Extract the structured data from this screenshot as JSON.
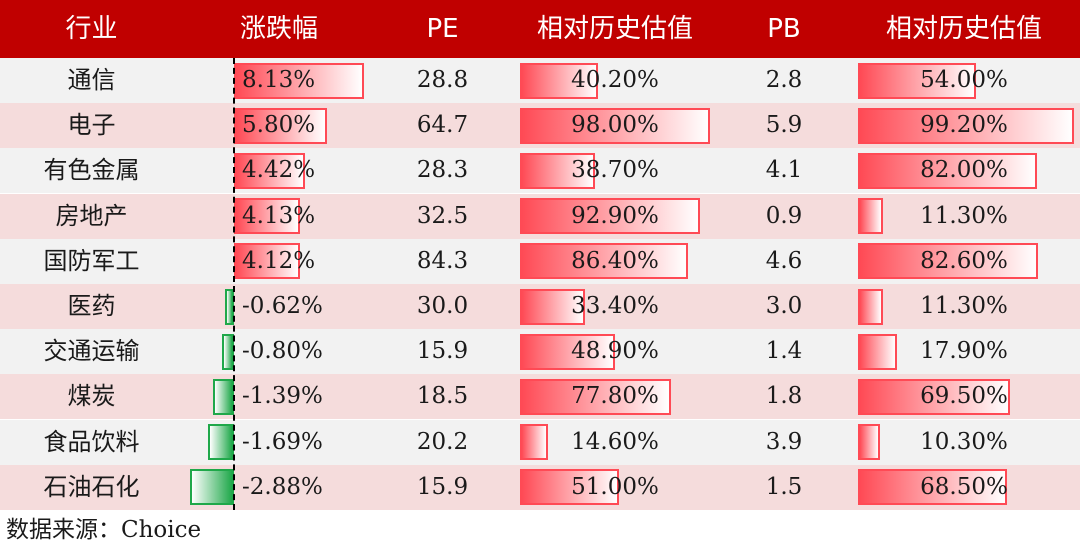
{
  "header": {
    "industry": "行业",
    "change": "涨跌幅",
    "pe": "PE",
    "pe_hist": "相对历史估值",
    "pb": "PB",
    "pb_hist": "相对历史估值"
  },
  "colors": {
    "header_bg": "#c00000",
    "row_light": "#f2f2f2",
    "row_dark": "#f5dcdc",
    "positive_bar": "#ff4a55",
    "negative_bar": "#1fa84a"
  },
  "chart_data": {
    "type": "table",
    "columns": [
      "行业",
      "涨跌幅",
      "PE",
      "相对历史估值",
      "PB",
      "相对历史估值"
    ],
    "rows": [
      {
        "industry": "通信",
        "change": 8.13,
        "change_label": "8.13%",
        "pe": "28.8",
        "pe_pct": 40.2,
        "pe_pct_label": "40.20%",
        "pb": "2.8",
        "pb_pct": 54.0,
        "pb_pct_label": "54.00%"
      },
      {
        "industry": "电子",
        "change": 5.8,
        "change_label": "5.80%",
        "pe": "64.7",
        "pe_pct": 98.0,
        "pe_pct_label": "98.00%",
        "pb": "5.9",
        "pb_pct": 99.2,
        "pb_pct_label": "99.20%"
      },
      {
        "industry": "有色金属",
        "change": 4.42,
        "change_label": "4.42%",
        "pe": "28.3",
        "pe_pct": 38.7,
        "pe_pct_label": "38.70%",
        "pb": "4.1",
        "pb_pct": 82.0,
        "pb_pct_label": "82.00%"
      },
      {
        "industry": "房地产",
        "change": 4.13,
        "change_label": "4.13%",
        "pe": "32.5",
        "pe_pct": 92.9,
        "pe_pct_label": "92.90%",
        "pb": "0.9",
        "pb_pct": 11.3,
        "pb_pct_label": "11.30%"
      },
      {
        "industry": "国防军工",
        "change": 4.12,
        "change_label": "4.12%",
        "pe": "84.3",
        "pe_pct": 86.4,
        "pe_pct_label": "86.40%",
        "pb": "4.6",
        "pb_pct": 82.6,
        "pb_pct_label": "82.60%"
      },
      {
        "industry": "医药",
        "change": -0.62,
        "change_label": "-0.62%",
        "pe": "30.0",
        "pe_pct": 33.4,
        "pe_pct_label": "33.40%",
        "pb": "3.0",
        "pb_pct": 11.3,
        "pb_pct_label": "11.30%"
      },
      {
        "industry": "交通运输",
        "change": -0.8,
        "change_label": "-0.80%",
        "pe": "15.9",
        "pe_pct": 48.9,
        "pe_pct_label": "48.90%",
        "pb": "1.4",
        "pb_pct": 17.9,
        "pb_pct_label": "17.90%"
      },
      {
        "industry": "煤炭",
        "change": -1.39,
        "change_label": "-1.39%",
        "pe": "18.5",
        "pe_pct": 77.8,
        "pe_pct_label": "77.80%",
        "pb": "1.8",
        "pb_pct": 69.5,
        "pb_pct_label": "69.50%"
      },
      {
        "industry": "食品饮料",
        "change": -1.69,
        "change_label": "-1.69%",
        "pe": "20.2",
        "pe_pct": 14.6,
        "pe_pct_label": "14.60%",
        "pb": "3.9",
        "pb_pct": 10.3,
        "pb_pct_label": "10.30%"
      },
      {
        "industry": "石油石化",
        "change": -2.88,
        "change_label": "-2.88%",
        "pe": "15.9",
        "pe_pct": 51.0,
        "pe_pct_label": "51.00%",
        "pb": "1.5",
        "pb_pct": 68.5,
        "pb_pct_label": "68.50%"
      }
    ]
  },
  "footer": {
    "source": "数据来源：Choice"
  }
}
